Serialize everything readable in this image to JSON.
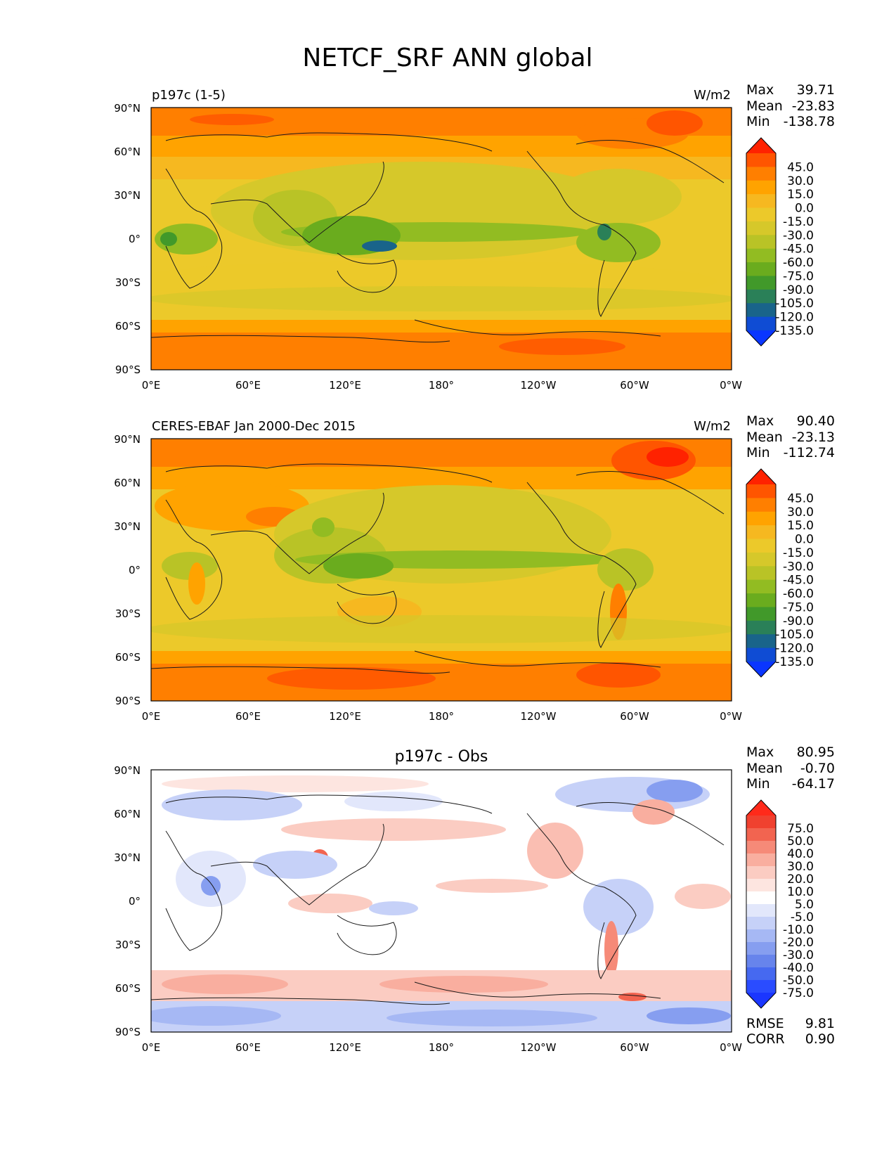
{
  "title": "NETCF_SRF ANN global",
  "lon_ticks": [
    "0°E",
    "60°E",
    "120°E",
    "180°",
    "120°W",
    "60°W",
    "0°W"
  ],
  "lat_ticks": [
    "90°N",
    "60°N",
    "30°N",
    "0°",
    "30°S",
    "60°S",
    "90°S"
  ],
  "panels": [
    {
      "left_title": "p197c (1-5)",
      "center_title": "",
      "units": "W/m2",
      "stats": [
        [
          "Max",
          "39.71"
        ],
        [
          "Mean",
          "-23.83"
        ],
        [
          "Min",
          "-138.78"
        ]
      ],
      "colorbar_ticks": [
        "45.0",
        "30.0",
        "15.0",
        "0.0",
        "-15.0",
        "-30.0",
        "-45.0",
        "-60.0",
        "-75.0",
        "-90.0",
        "-105.0",
        "-120.0",
        "-135.0"
      ],
      "colorbar_colors": [
        "#ff2200",
        "#ff5500",
        "#ff7f00",
        "#ffa300",
        "#f6b820",
        "#ecc92a",
        "#d6c82a",
        "#b9c326",
        "#92bc22",
        "#6aac1e",
        "#41992a",
        "#2a8058",
        "#19648a",
        "#0f4cd4",
        "#0a36ff"
      ]
    },
    {
      "left_title": "CERES-EBAF Jan 2000-Dec 2015",
      "center_title": "",
      "units": "W/m2",
      "stats": [
        [
          "Max",
          "90.40"
        ],
        [
          "Mean",
          "-23.13"
        ],
        [
          "Min",
          "-112.74"
        ]
      ],
      "colorbar_ticks": [
        "45.0",
        "30.0",
        "15.0",
        "0.0",
        "-15.0",
        "-30.0",
        "-45.0",
        "-60.0",
        "-75.0",
        "-90.0",
        "-105.0",
        "-120.0",
        "-135.0"
      ],
      "colorbar_colors": [
        "#ff2200",
        "#ff5500",
        "#ff7f00",
        "#ffa300",
        "#f6b820",
        "#ecc92a",
        "#d6c82a",
        "#b9c326",
        "#92bc22",
        "#6aac1e",
        "#41992a",
        "#2a8058",
        "#19648a",
        "#0f4cd4",
        "#0a36ff"
      ]
    },
    {
      "left_title": "",
      "center_title": "p197c - Obs",
      "units": "",
      "stats": [
        [
          "Max",
          "80.95"
        ],
        [
          "Mean",
          "-0.70"
        ],
        [
          "Min",
          "-64.17"
        ]
      ],
      "extra_stats": [
        [
          "RMSE",
          "9.81"
        ],
        [
          "CORR",
          "0.90"
        ]
      ],
      "colorbar_ticks": [
        "75.0",
        "50.0",
        "40.0",
        "30.0",
        "20.0",
        "10.0",
        "5.0",
        "-5.0",
        "-10.0",
        "-20.0",
        "-30.0",
        "-40.0",
        "-50.0",
        "-75.0"
      ],
      "colorbar_colors": [
        "#ff2a1a",
        "#f0412f",
        "#f26450",
        "#f68a78",
        "#f9ae9f",
        "#fbccc2",
        "#fde5e0",
        "#ffffff",
        "#e2e7fb",
        "#c6d1f8",
        "#a6b8f4",
        "#869ef0",
        "#6784ec",
        "#4669f0",
        "#2a4cff",
        "#1a36ff"
      ]
    }
  ]
}
